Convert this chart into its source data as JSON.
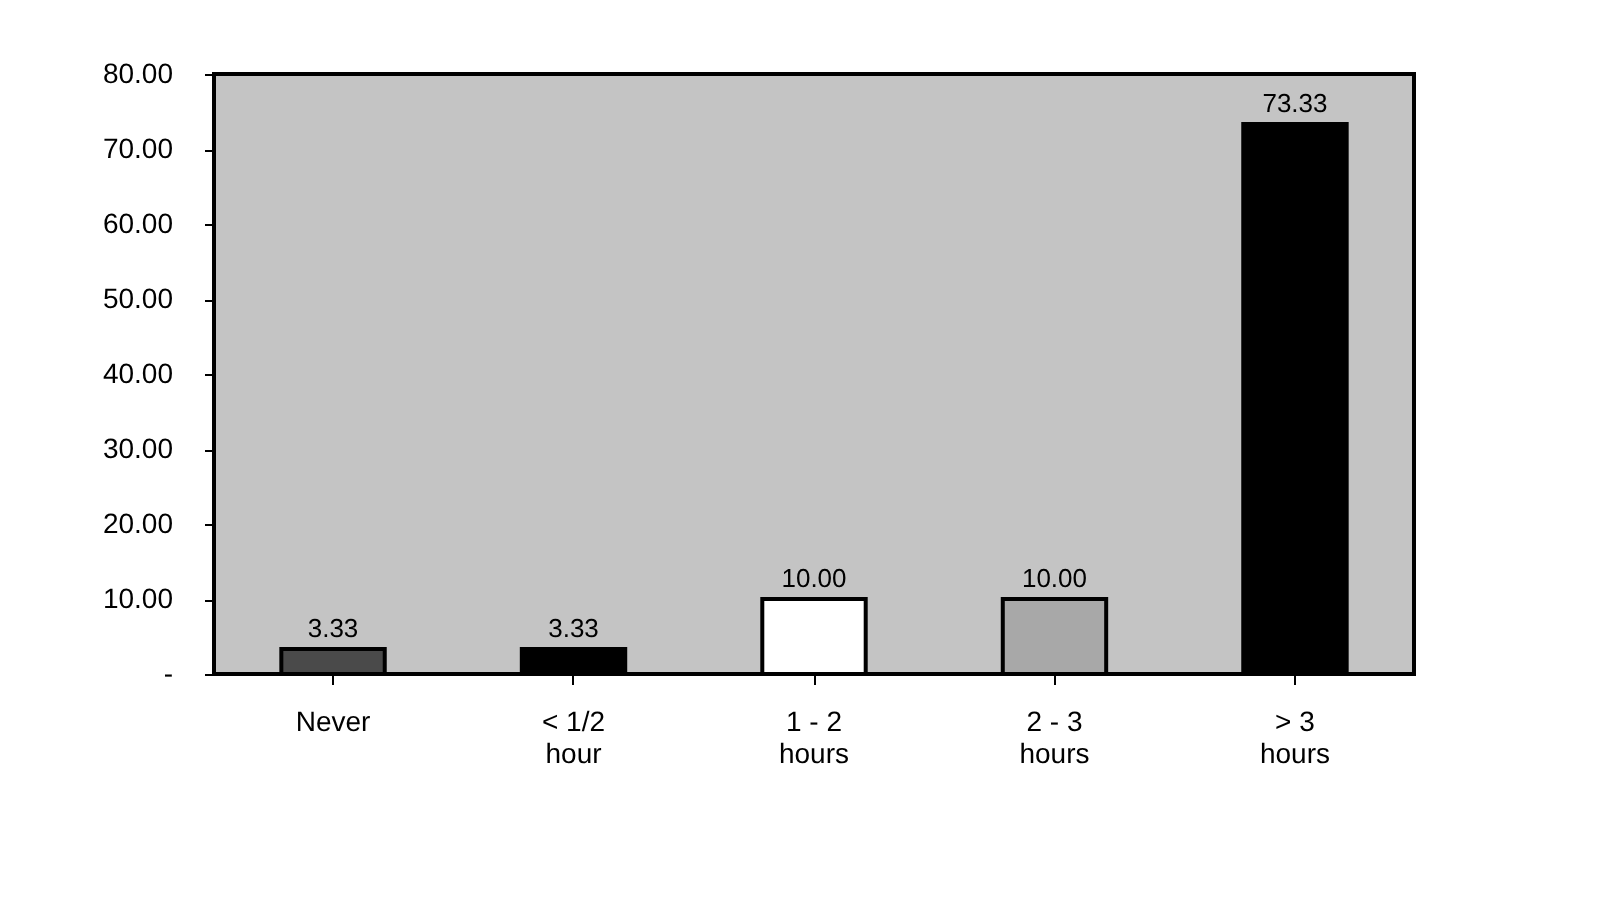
{
  "chart_data": {
    "type": "bar",
    "categories": [
      "Never",
      "< 1/2\nhour",
      "1 - 2\nhours",
      "2 - 3\nhours",
      "> 3\nhours"
    ],
    "values": [
      3.33,
      3.33,
      10.0,
      10.0,
      73.33
    ],
    "colors": [
      "#4a4a4a",
      "#000000",
      "#ffffff",
      "#a8a8a8",
      "#000000"
    ],
    "ylim": [
      0,
      80
    ],
    "yticks": [
      {
        "value": 0,
        "label": "-"
      },
      {
        "value": 10,
        "label": "10.00"
      },
      {
        "value": 20,
        "label": "20.00"
      },
      {
        "value": 30,
        "label": "30.00"
      },
      {
        "value": 40,
        "label": "40.00"
      },
      {
        "value": 50,
        "label": "50.00"
      },
      {
        "value": 60,
        "label": "60.00"
      },
      {
        "value": 70,
        "label": "70.00"
      },
      {
        "value": 80,
        "label": "80.00"
      }
    ],
    "value_labels": [
      "3.33",
      "3.33",
      "10.00",
      "10.00",
      "73.33"
    ],
    "grid": false
  }
}
